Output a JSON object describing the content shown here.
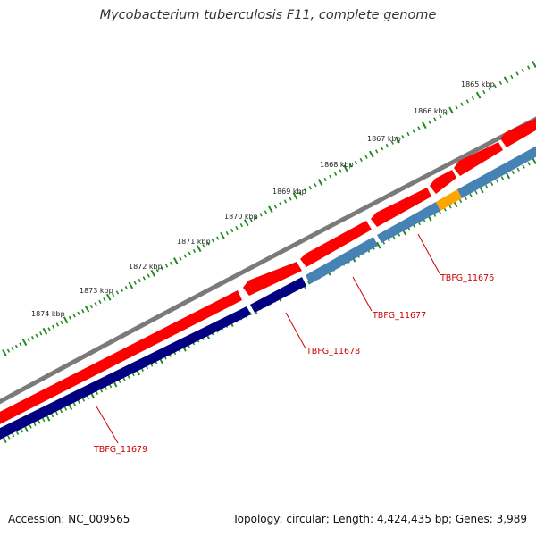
{
  "title": "Mycobacterium tuberculosis F11, complete genome",
  "ruler": {
    "labels": [
      "1865 kbp",
      "1866 kbp",
      "1867 kbp",
      "1868 kbp",
      "1869 kbp",
      "1870 kbp",
      "1871 kbp",
      "1872 kbp",
      "1873 kbp",
      "1874 kbp"
    ]
  },
  "genes": [
    {
      "label": "TBFG_11676"
    },
    {
      "label": "TBFG_11677"
    },
    {
      "label": "TBFG_11678"
    },
    {
      "label": "TBFG_11679"
    }
  ],
  "colors": {
    "backbone": "#7a7a7a",
    "forward": "#ff0000",
    "reverse_dark": "#000080",
    "reverse_light": "#4682b4",
    "highlight": "#ffa500",
    "ticks": "#228b22",
    "label": "#cc0000"
  },
  "footer": {
    "accession": "Accession: NC_009565",
    "summary": "Topology: circular; Length: 4,424,435 bp; Genes: 3,989"
  }
}
